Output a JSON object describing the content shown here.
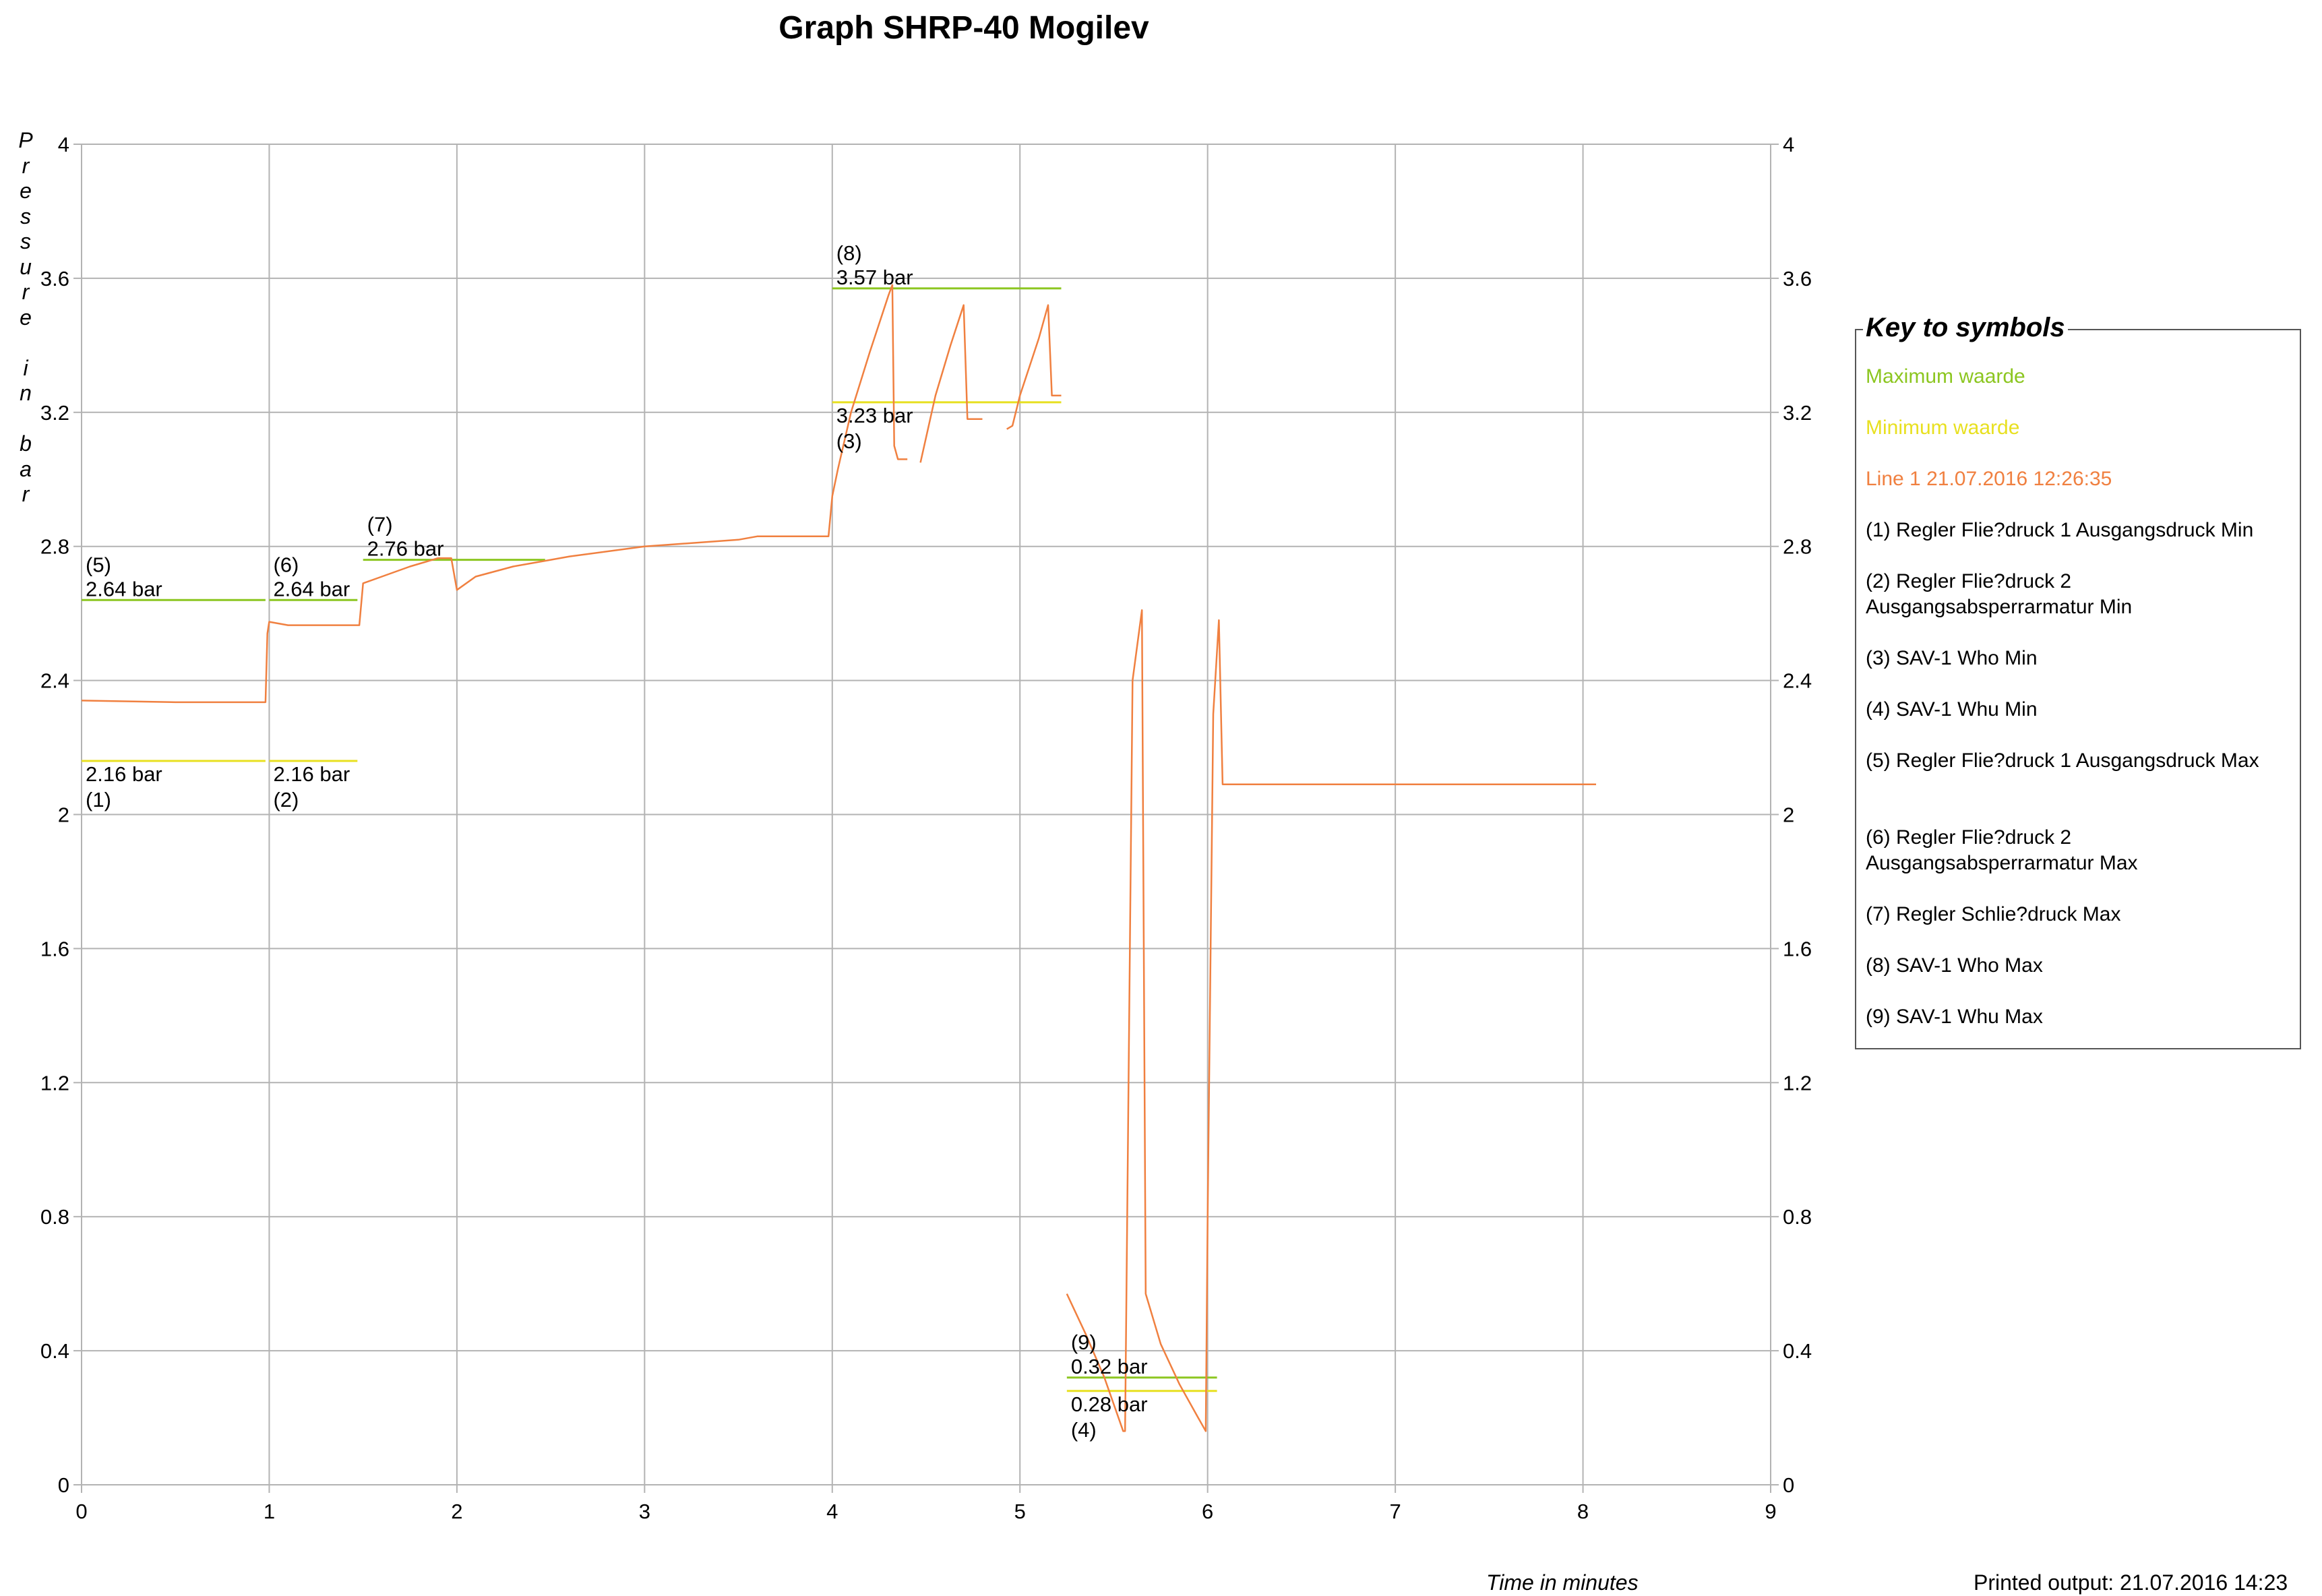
{
  "title": "Graph SHRP-40 Mogilev",
  "ylabel_chars": [
    "P",
    "r",
    "e",
    "s",
    "s",
    "u",
    "r",
    "e",
    "",
    "i",
    "n",
    "",
    "b",
    "a",
    "r"
  ],
  "xlabel": "Time in minutes",
  "printed": "Printed output: 21.07.2016 14:23",
  "legend": {
    "title": "Key to symbols",
    "items": [
      {
        "label": "Maximum waarde",
        "color": "#8cc620"
      },
      {
        "label": "Minimum waarde",
        "color": "#e8e020"
      },
      {
        "label": "Line 1 21.07.2016 12:26:35",
        "color": "#f08040"
      },
      {
        "label": "(1) Regler Flie?druck 1 Ausgangsdruck Min",
        "color": "#000000"
      },
      {
        "label": "(2) Regler Flie?druck 2 Ausgangsabsperrarmatur Min",
        "color": "#000000"
      },
      {
        "label": "(3) SAV-1 Who Min",
        "color": "#000000"
      },
      {
        "label": "(4) SAV-1 Whu Min",
        "color": "#000000"
      },
      {
        "label": "(5) Regler Flie?druck 1 Ausgangsdruck Max",
        "color": "#000000"
      },
      {
        "label": "(6) Regler Flie?druck 2 Ausgangsabsperrarmatur Max",
        "color": "#000000"
      },
      {
        "label": "(7) Regler Schlie?druck Max",
        "color": "#000000"
      },
      {
        "label": "(8) SAV-1 Who Max",
        "color": "#000000"
      },
      {
        "label": "(9) SAV-1 Whu Max",
        "color": "#000000"
      }
    ]
  },
  "chart_data": {
    "type": "line",
    "title": "Graph SHRP-40 Mogilev",
    "xlabel": "Time in minutes",
    "ylabel": "Pressure in bar",
    "xlim": [
      0,
      9
    ],
    "ylim": [
      0,
      4
    ],
    "x_ticks": [
      "0",
      "1",
      "2",
      "3",
      "4",
      "5",
      "6",
      "7",
      "8",
      "9"
    ],
    "y_ticks": [
      "0",
      "0.4",
      "0.8",
      "1.2",
      "1.6",
      "2",
      "2.4",
      "2.8",
      "3.2",
      "3.6",
      "4"
    ],
    "grid": true,
    "secondary_y_axis": true,
    "legend_position": "right",
    "colors": {
      "max": "#8cc620",
      "min": "#e8e020",
      "line": "#f08040"
    },
    "max_limits": [
      {
        "id": "5",
        "x": [
          0,
          0.98
        ],
        "y": 2.64,
        "label_num": "(5)",
        "label_val": "2.64 bar"
      },
      {
        "id": "6",
        "x": [
          1.0,
          1.47
        ],
        "y": 2.64,
        "label_num": "(6)",
        "label_val": "2.64 bar"
      },
      {
        "id": "7",
        "x": [
          1.5,
          2.47
        ],
        "y": 2.76,
        "label_num": "(7)",
        "label_val": "2.76 bar"
      },
      {
        "id": "8",
        "x": [
          4.0,
          5.22
        ],
        "y": 3.57,
        "label_num": "(8)",
        "label_val": "3.57 bar"
      },
      {
        "id": "9",
        "x": [
          5.25,
          6.05
        ],
        "y": 0.32,
        "label_num": "(9)",
        "label_val": "0.32 bar"
      }
    ],
    "min_limits": [
      {
        "id": "1",
        "x": [
          0,
          0.98
        ],
        "y": 2.16,
        "label_num": "(1)",
        "label_val": "2.16 bar"
      },
      {
        "id": "2",
        "x": [
          1.0,
          1.47
        ],
        "y": 2.16,
        "label_num": "(2)",
        "label_val": "2.16 bar"
      },
      {
        "id": "3",
        "x": [
          4.0,
          5.22
        ],
        "y": 3.23,
        "label_num": "(3)",
        "label_val": "3.23 bar"
      },
      {
        "id": "4",
        "x": [
          5.25,
          6.05
        ],
        "y": 0.28,
        "label_num": "(4)",
        "label_val": "0.28 bar"
      }
    ],
    "series": [
      {
        "name": "Line 1 21.07.2016 12:26:35",
        "segments": [
          [
            [
              0,
              2.34
            ],
            [
              0.5,
              2.335
            ],
            [
              0.98,
              2.335
            ],
            [
              0.99,
              2.54
            ],
            [
              1.0,
              2.575
            ],
            [
              1.1,
              2.565
            ],
            [
              1.3,
              2.565
            ],
            [
              1.48,
              2.565
            ],
            [
              1.5,
              2.69
            ],
            [
              1.6,
              2.71
            ],
            [
              1.75,
              2.74
            ],
            [
              1.9,
              2.765
            ],
            [
              1.97,
              2.765
            ],
            [
              2.0,
              2.67
            ],
            [
              2.1,
              2.71
            ],
            [
              2.3,
              2.74
            ],
            [
              2.5,
              2.76
            ],
            [
              2.6,
              2.77
            ],
            [
              3.0,
              2.8
            ],
            [
              3.5,
              2.82
            ],
            [
              3.6,
              2.83
            ],
            [
              3.98,
              2.83
            ],
            [
              4.0,
              2.95
            ],
            [
              4.03,
              3.03
            ],
            [
              4.1,
              3.2
            ],
            [
              4.2,
              3.38
            ],
            [
              4.3,
              3.55
            ],
            [
              4.32,
              3.58
            ],
            [
              4.33,
              3.1
            ],
            [
              4.35,
              3.06
            ],
            [
              4.4,
              3.06
            ]
          ],
          [
            [
              4.47,
              3.05
            ],
            [
              4.55,
              3.25
            ],
            [
              4.63,
              3.4
            ],
            [
              4.7,
              3.52
            ],
            [
              4.72,
              3.18
            ],
            [
              4.8,
              3.18
            ]
          ],
          [
            [
              4.93,
              3.15
            ],
            [
              4.96,
              3.16
            ],
            [
              5.0,
              3.25
            ],
            [
              5.1,
              3.42
            ],
            [
              5.15,
              3.52
            ],
            [
              5.17,
              3.25
            ],
            [
              5.22,
              3.25
            ]
          ],
          [
            [
              5.25,
              0.57
            ],
            [
              5.35,
              0.45
            ],
            [
              5.45,
              0.32
            ],
            [
              5.55,
              0.16
            ],
            [
              5.56,
              0.16
            ],
            [
              5.6,
              2.4
            ],
            [
              5.65,
              2.61
            ],
            [
              5.67,
              0.57
            ],
            [
              5.75,
              0.42
            ],
            [
              5.85,
              0.3
            ],
            [
              5.95,
              0.2
            ],
            [
              5.99,
              0.16
            ],
            [
              6.0,
              0.8
            ],
            [
              6.03,
              2.3
            ],
            [
              6.06,
              2.58
            ],
            [
              6.08,
              2.09
            ],
            [
              7.0,
              2.09
            ],
            [
              8.0,
              2.09
            ],
            [
              8.07,
              2.09
            ]
          ]
        ]
      }
    ]
  }
}
